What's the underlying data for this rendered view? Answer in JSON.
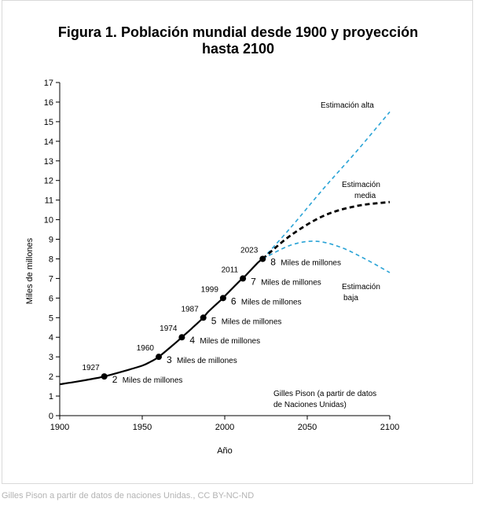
{
  "caption": "Gilles Pison a partir de datos de naciones Unidas., CC BY-NC-ND",
  "chart_data": {
    "type": "line",
    "title_lines": [
      "Figura 1. Población mundial desde 1900 y proyección",
      "hasta 2100"
    ],
    "xlabel": "Año",
    "ylabel": "Miles de millones",
    "xlim": [
      1900,
      2100
    ],
    "ylim": [
      0,
      17
    ],
    "x_ticks": [
      1900,
      1950,
      2000,
      2050,
      2100
    ],
    "y_ticks": [
      0,
      1,
      2,
      3,
      4,
      5,
      6,
      7,
      8,
      9,
      10,
      11,
      12,
      13,
      14,
      15,
      16,
      17
    ],
    "grid": false,
    "colors": {
      "historical": "#000000",
      "medium": "#000000",
      "high_low": "#29a3d6"
    },
    "series": [
      {
        "style": "solid",
        "x": [
          1900,
          1910,
          1920,
          1927,
          1940,
          1950,
          1955,
          1960,
          1970,
          1974,
          1980,
          1987,
          1990,
          1999,
          2000,
          2010,
          2011,
          2020,
          2023
        ],
        "values": [
          1.6,
          1.73,
          1.88,
          2.0,
          2.3,
          2.55,
          2.75,
          3.0,
          3.7,
          4.0,
          4.45,
          5.0,
          5.3,
          6.0,
          6.1,
          6.95,
          7.0,
          7.8,
          8.0
        ]
      },
      {
        "style": "dashed",
        "color_key": "high_low",
        "x": [
          2023,
          2040,
          2060,
          2080,
          2100
        ],
        "values": [
          8.0,
          9.6,
          11.6,
          13.5,
          15.5
        ]
      },
      {
        "style": "dashed",
        "color_key": "medium",
        "x": [
          2023,
          2040,
          2060,
          2080,
          2100
        ],
        "values": [
          8.0,
          9.2,
          10.2,
          10.7,
          10.9
        ]
      },
      {
        "style": "dashed",
        "color_key": "high_low",
        "x": [
          2023,
          2040,
          2055,
          2070,
          2085,
          2100
        ],
        "values": [
          8.0,
          8.7,
          8.9,
          8.6,
          8.0,
          7.3
        ]
      }
    ],
    "milestones": [
      {
        "year": 1927,
        "value": 2,
        "year_label": "1927",
        "number_label": "2",
        "unit_label": "Miles de millones"
      },
      {
        "year": 1960,
        "value": 3,
        "year_label": "1960",
        "number_label": "3",
        "unit_label": "Miles de millones"
      },
      {
        "year": 1974,
        "value": 4,
        "year_label": "1974",
        "number_label": "4",
        "unit_label": "Miles de millones"
      },
      {
        "year": 1987,
        "value": 5,
        "year_label": "1987",
        "number_label": "5",
        "unit_label": "Miles de millones"
      },
      {
        "year": 1999,
        "value": 6,
        "year_label": "1999",
        "number_label": "6",
        "unit_label": "Miles de millones"
      },
      {
        "year": 2011,
        "value": 7,
        "year_label": "2011",
        "number_label": "7",
        "unit_label": "Miles de millones"
      },
      {
        "year": 2023,
        "value": 8,
        "year_label": "2023",
        "number_label": "8",
        "unit_label": "Miles de millones"
      }
    ],
    "annotations": {
      "high": [
        "Estimación alta"
      ],
      "medium": [
        "Estimación",
        "media"
      ],
      "low": [
        "Estimación",
        "baja"
      ],
      "source": [
        "Gilles Pison (a partir de datos",
        "de Naciones Unidas)"
      ]
    }
  }
}
